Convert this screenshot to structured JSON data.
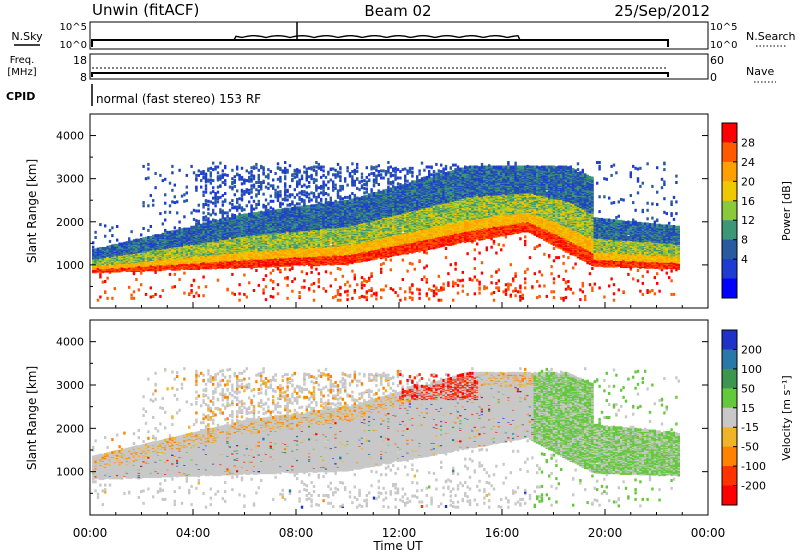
{
  "header": {
    "site": "Unwin (fitACF)",
    "beam": "Beam 02",
    "date": "25/Sep/2012"
  },
  "status_panels": {
    "nsky_label": "N.Sky",
    "nsky_ticks": [
      "10^5",
      "10^0"
    ],
    "nsearch_label": "N.Search",
    "nsearch_ticks": [
      "10^5",
      "10^0"
    ],
    "freq_label_1": "Freq.",
    "freq_label_2": "[MHz]",
    "freq_ticks": [
      "18",
      "8"
    ],
    "nave_label": "Nave",
    "nave_ticks": [
      "60",
      "0"
    ],
    "cpid_label": "CPID",
    "cpid_text": "normal (fast stereo) 153 RF"
  },
  "chart_data": [
    {
      "type": "heatmap",
      "name": "power",
      "ylabel": "Slant Range [km]",
      "ylim": [
        0,
        4500
      ],
      "yticks": [
        1000,
        2000,
        3000,
        4000
      ],
      "xlim_hours": [
        0,
        24
      ],
      "colorbar_label": "Power [dB]",
      "colorbar_ticks": [
        "28",
        "24",
        "20",
        "16",
        "12",
        "8",
        "4"
      ],
      "colorbar_colors": [
        "#ff0000",
        "#ff5a00",
        "#ffa000",
        "#f0c800",
        "#8cc83c",
        "#3c9678",
        "#285aa0",
        "#1e3cd2",
        "#0000ff"
      ]
    },
    {
      "type": "heatmap",
      "name": "velocity",
      "ylabel": "Slant Range [km]",
      "ylim": [
        0,
        4500
      ],
      "yticks": [
        1000,
        2000,
        3000,
        4000
      ],
      "xlim_hours": [
        0,
        24
      ],
      "colorbar_label": "Velocity [m s⁻¹]",
      "colorbar_ticks": [
        "200",
        "100",
        "50",
        "15",
        "-15",
        "-50",
        "-100",
        "-200"
      ],
      "colorbar_colors": [
        "#1e32c8",
        "#2878aa",
        "#3c9650",
        "#64c83c",
        "#c8c8c8",
        "#f0b428",
        "#ff8200",
        "#ff3200",
        "#ff0000"
      ]
    }
  ],
  "x_axis": {
    "ticks": [
      "00:00",
      "04:00",
      "08:00",
      "12:00",
      "16:00",
      "20:00",
      "00:00"
    ],
    "label": "Time UT"
  }
}
